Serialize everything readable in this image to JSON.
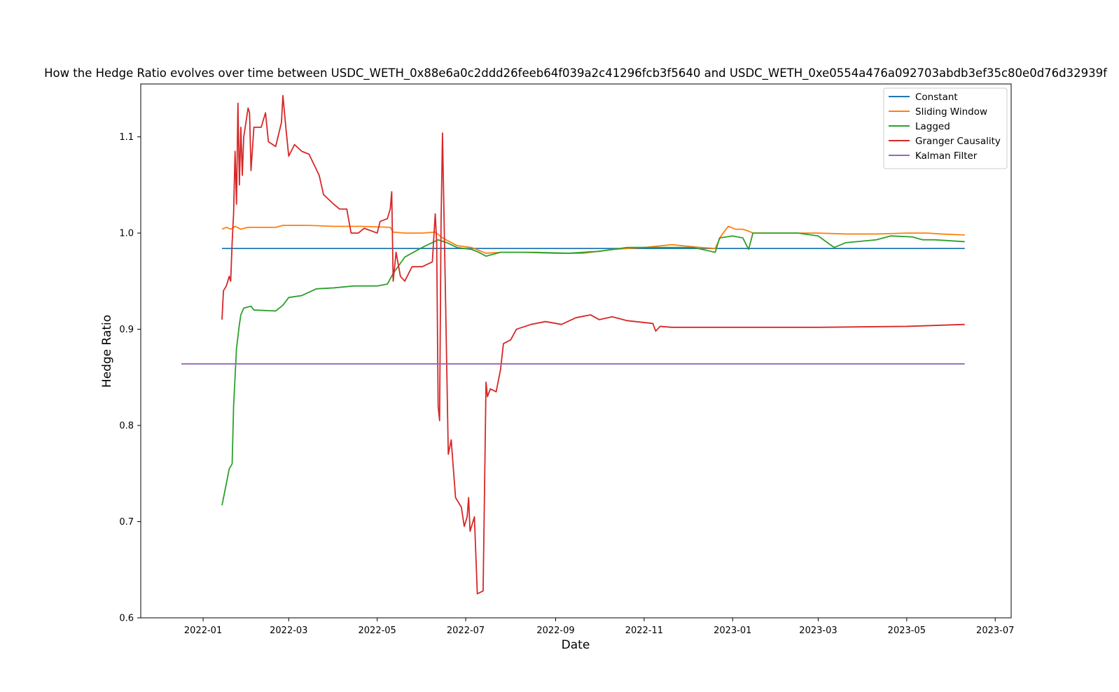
{
  "chart_data": {
    "type": "line",
    "title": "How the Hedge Ratio evolves over time between USDC_WETH_0x88e6a0c2ddd26feeb64f039a2c41296fcb3f5640 and USDC_WETH_0xe0554a476a092703abdb3ef35c80e0d76d32939f",
    "xlabel": "Date",
    "ylabel": "Hedge Ratio",
    "xlim": [
      "2021-11-19",
      "2023-07-12"
    ],
    "ylim": [
      0.6,
      1.155
    ],
    "x_ticks": [
      "2022-01",
      "2022-03",
      "2022-05",
      "2022-07",
      "2022-09",
      "2022-11",
      "2023-01",
      "2023-03",
      "2023-05",
      "2023-07"
    ],
    "y_ticks": [
      0.6,
      0.7,
      0.8,
      0.9,
      1.0,
      1.1
    ],
    "y_tick_labels": [
      "0.6",
      "0.7",
      "0.8",
      "0.9",
      "1.0",
      "1.1"
    ],
    "grid": false,
    "legend_position": "top-right",
    "series": [
      {
        "name": "Constant",
        "color": "#1f77b4",
        "points": [
          [
            "2022-01-14",
            0.984
          ],
          [
            "2023-06-10",
            0.984
          ]
        ]
      },
      {
        "name": "Sliding Window",
        "color": "#ff7f0e",
        "points": [
          [
            "2022-01-14",
            1.004
          ],
          [
            "2022-01-17",
            1.006
          ],
          [
            "2022-01-20",
            1.004
          ],
          [
            "2022-01-23",
            1.007
          ],
          [
            "2022-01-27",
            1.004
          ],
          [
            "2022-02-01",
            1.006
          ],
          [
            "2022-02-10",
            1.006
          ],
          [
            "2022-02-20",
            1.006
          ],
          [
            "2022-02-25",
            1.008
          ],
          [
            "2022-03-01",
            1.008
          ],
          [
            "2022-03-15",
            1.008
          ],
          [
            "2022-04-01",
            1.007
          ],
          [
            "2022-04-20",
            1.007
          ],
          [
            "2022-05-10",
            1.006
          ],
          [
            "2022-05-12",
            1.001
          ],
          [
            "2022-05-20",
            1.0
          ],
          [
            "2022-06-01",
            1.0
          ],
          [
            "2022-06-10",
            1.001
          ],
          [
            "2022-06-15",
            0.995
          ],
          [
            "2022-06-25",
            0.987
          ],
          [
            "2022-07-05",
            0.985
          ],
          [
            "2022-07-10",
            0.982
          ],
          [
            "2022-07-15",
            0.979
          ],
          [
            "2022-07-25",
            0.98
          ],
          [
            "2022-08-10",
            0.98
          ],
          [
            "2022-09-01",
            0.979
          ],
          [
            "2022-09-20",
            0.979
          ],
          [
            "2022-10-10",
            0.983
          ],
          [
            "2022-11-01",
            0.985
          ],
          [
            "2022-11-20",
            0.988
          ],
          [
            "2022-12-10",
            0.985
          ],
          [
            "2022-12-20",
            0.984
          ],
          [
            "2022-12-24",
            0.997
          ],
          [
            "2022-12-29",
            1.007
          ],
          [
            "2023-01-03",
            1.004
          ],
          [
            "2023-01-08",
            1.004
          ],
          [
            "2023-01-12",
            1.002
          ],
          [
            "2023-01-15",
            1.0
          ],
          [
            "2023-02-01",
            1.0
          ],
          [
            "2023-03-01",
            1.0
          ],
          [
            "2023-03-20",
            0.999
          ],
          [
            "2023-04-10",
            0.999
          ],
          [
            "2023-05-01",
            1.0
          ],
          [
            "2023-05-15",
            1.0
          ],
          [
            "2023-05-25",
            0.999
          ],
          [
            "2023-06-10",
            0.998
          ]
        ]
      },
      {
        "name": "Lagged",
        "color": "#2ca02c",
        "points": [
          [
            "2022-01-14",
            0.717
          ],
          [
            "2022-01-16",
            0.732
          ],
          [
            "2022-01-19",
            0.755
          ],
          [
            "2022-01-21",
            0.76
          ],
          [
            "2022-01-22",
            0.82
          ],
          [
            "2022-01-24",
            0.88
          ],
          [
            "2022-01-26",
            0.905
          ],
          [
            "2022-01-27",
            0.915
          ],
          [
            "2022-01-29",
            0.922
          ],
          [
            "2022-02-03",
            0.924
          ],
          [
            "2022-02-05",
            0.92
          ],
          [
            "2022-02-20",
            0.919
          ],
          [
            "2022-02-25",
            0.925
          ],
          [
            "2022-03-01",
            0.933
          ],
          [
            "2022-03-10",
            0.935
          ],
          [
            "2022-03-20",
            0.942
          ],
          [
            "2022-04-01",
            0.943
          ],
          [
            "2022-04-15",
            0.945
          ],
          [
            "2022-05-01",
            0.945
          ],
          [
            "2022-05-08",
            0.947
          ],
          [
            "2022-05-12",
            0.958
          ],
          [
            "2022-05-20",
            0.975
          ],
          [
            "2022-06-01",
            0.985
          ],
          [
            "2022-06-12",
            0.993
          ],
          [
            "2022-06-18",
            0.99
          ],
          [
            "2022-06-25",
            0.985
          ],
          [
            "2022-07-05",
            0.983
          ],
          [
            "2022-07-10",
            0.98
          ],
          [
            "2022-07-15",
            0.976
          ],
          [
            "2022-07-25",
            0.98
          ],
          [
            "2022-08-15",
            0.98
          ],
          [
            "2022-09-10",
            0.979
          ],
          [
            "2022-10-01",
            0.981
          ],
          [
            "2022-10-20",
            0.985
          ],
          [
            "2022-11-15",
            0.985
          ],
          [
            "2022-12-05",
            0.985
          ],
          [
            "2022-12-20",
            0.98
          ],
          [
            "2022-12-23",
            0.995
          ],
          [
            "2023-01-01",
            0.997
          ],
          [
            "2023-01-08",
            0.995
          ],
          [
            "2023-01-12",
            0.983
          ],
          [
            "2023-01-15",
            1.0
          ],
          [
            "2023-02-15",
            1.0
          ],
          [
            "2023-03-01",
            0.997
          ],
          [
            "2023-03-12",
            0.985
          ],
          [
            "2023-03-20",
            0.99
          ],
          [
            "2023-04-10",
            0.993
          ],
          [
            "2023-04-20",
            0.997
          ],
          [
            "2023-05-05",
            0.996
          ],
          [
            "2023-05-12",
            0.993
          ],
          [
            "2023-05-20",
            0.993
          ],
          [
            "2023-06-10",
            0.991
          ]
        ]
      },
      {
        "name": "Granger Causality",
        "color": "#d62728",
        "points": [
          [
            "2022-01-14",
            0.91
          ],
          [
            "2022-01-15",
            0.94
          ],
          [
            "2022-01-17",
            0.945
          ],
          [
            "2022-01-19",
            0.955
          ],
          [
            "2022-01-20",
            0.95
          ],
          [
            "2022-01-21",
            0.99
          ],
          [
            "2022-01-22",
            1.02
          ],
          [
            "2022-01-23",
            1.085
          ],
          [
            "2022-01-24",
            1.03
          ],
          [
            "2022-01-25",
            1.135
          ],
          [
            "2022-01-26",
            1.05
          ],
          [
            "2022-01-27",
            1.11
          ],
          [
            "2022-01-28",
            1.06
          ],
          [
            "2022-01-29",
            1.1
          ],
          [
            "2022-02-01",
            1.13
          ],
          [
            "2022-02-02",
            1.125
          ],
          [
            "2022-02-03",
            1.065
          ],
          [
            "2022-02-05",
            1.11
          ],
          [
            "2022-02-10",
            1.11
          ],
          [
            "2022-02-13",
            1.125
          ],
          [
            "2022-02-15",
            1.095
          ],
          [
            "2022-02-20",
            1.09
          ],
          [
            "2022-02-24",
            1.115
          ],
          [
            "2022-02-25",
            1.143
          ],
          [
            "2022-02-27",
            1.11
          ],
          [
            "2022-03-01",
            1.08
          ],
          [
            "2022-03-05",
            1.092
          ],
          [
            "2022-03-10",
            1.085
          ],
          [
            "2022-03-15",
            1.082
          ],
          [
            "2022-03-22",
            1.06
          ],
          [
            "2022-03-25",
            1.04
          ],
          [
            "2022-04-01",
            1.03
          ],
          [
            "2022-04-05",
            1.025
          ],
          [
            "2022-04-10",
            1.025
          ],
          [
            "2022-04-13",
            1.0
          ],
          [
            "2022-04-18",
            1.0
          ],
          [
            "2022-04-22",
            1.005
          ],
          [
            "2022-05-01",
            1.0
          ],
          [
            "2022-05-03",
            1.012
          ],
          [
            "2022-05-08",
            1.015
          ],
          [
            "2022-05-10",
            1.025
          ],
          [
            "2022-05-11",
            1.043
          ],
          [
            "2022-05-12",
            0.95
          ],
          [
            "2022-05-14",
            0.98
          ],
          [
            "2022-05-17",
            0.955
          ],
          [
            "2022-05-20",
            0.95
          ],
          [
            "2022-05-25",
            0.965
          ],
          [
            "2022-06-01",
            0.965
          ],
          [
            "2022-06-08",
            0.97
          ],
          [
            "2022-06-10",
            1.02
          ],
          [
            "2022-06-11",
            0.99
          ],
          [
            "2022-06-12",
            0.82
          ],
          [
            "2022-06-13",
            0.805
          ],
          [
            "2022-06-14",
            1.01
          ],
          [
            "2022-06-15",
            1.104
          ],
          [
            "2022-06-17",
            0.94
          ],
          [
            "2022-06-19",
            0.77
          ],
          [
            "2022-06-21",
            0.785
          ],
          [
            "2022-06-24",
            0.725
          ],
          [
            "2022-06-28",
            0.715
          ],
          [
            "2022-06-30",
            0.695
          ],
          [
            "2022-07-02",
            0.705
          ],
          [
            "2022-07-03",
            0.725
          ],
          [
            "2022-07-04",
            0.69
          ],
          [
            "2022-07-07",
            0.705
          ],
          [
            "2022-07-09",
            0.625
          ],
          [
            "2022-07-13",
            0.628
          ],
          [
            "2022-07-14",
            0.735
          ],
          [
            "2022-07-15",
            0.845
          ],
          [
            "2022-07-16",
            0.83
          ],
          [
            "2022-07-18",
            0.838
          ],
          [
            "2022-07-22",
            0.835
          ],
          [
            "2022-07-25",
            0.858
          ],
          [
            "2022-07-27",
            0.885
          ],
          [
            "2022-08-01",
            0.889
          ],
          [
            "2022-08-05",
            0.9
          ],
          [
            "2022-08-15",
            0.905
          ],
          [
            "2022-08-25",
            0.908
          ],
          [
            "2022-09-05",
            0.905
          ],
          [
            "2022-09-15",
            0.912
          ],
          [
            "2022-09-25",
            0.915
          ],
          [
            "2022-10-01",
            0.91
          ],
          [
            "2022-10-10",
            0.913
          ],
          [
            "2022-10-20",
            0.909
          ],
          [
            "2022-11-01",
            0.907
          ],
          [
            "2022-11-07",
            0.906
          ],
          [
            "2022-11-09",
            0.898
          ],
          [
            "2022-11-12",
            0.903
          ],
          [
            "2022-11-20",
            0.902
          ],
          [
            "2023-01-01",
            0.902
          ],
          [
            "2023-03-01",
            0.902
          ],
          [
            "2023-05-01",
            0.903
          ],
          [
            "2023-06-10",
            0.905
          ]
        ]
      },
      {
        "name": "Kalman Filter",
        "color": "#9467bd",
        "points": [
          [
            "2021-12-17",
            0.864
          ],
          [
            "2023-06-10",
            0.864
          ]
        ]
      }
    ]
  }
}
